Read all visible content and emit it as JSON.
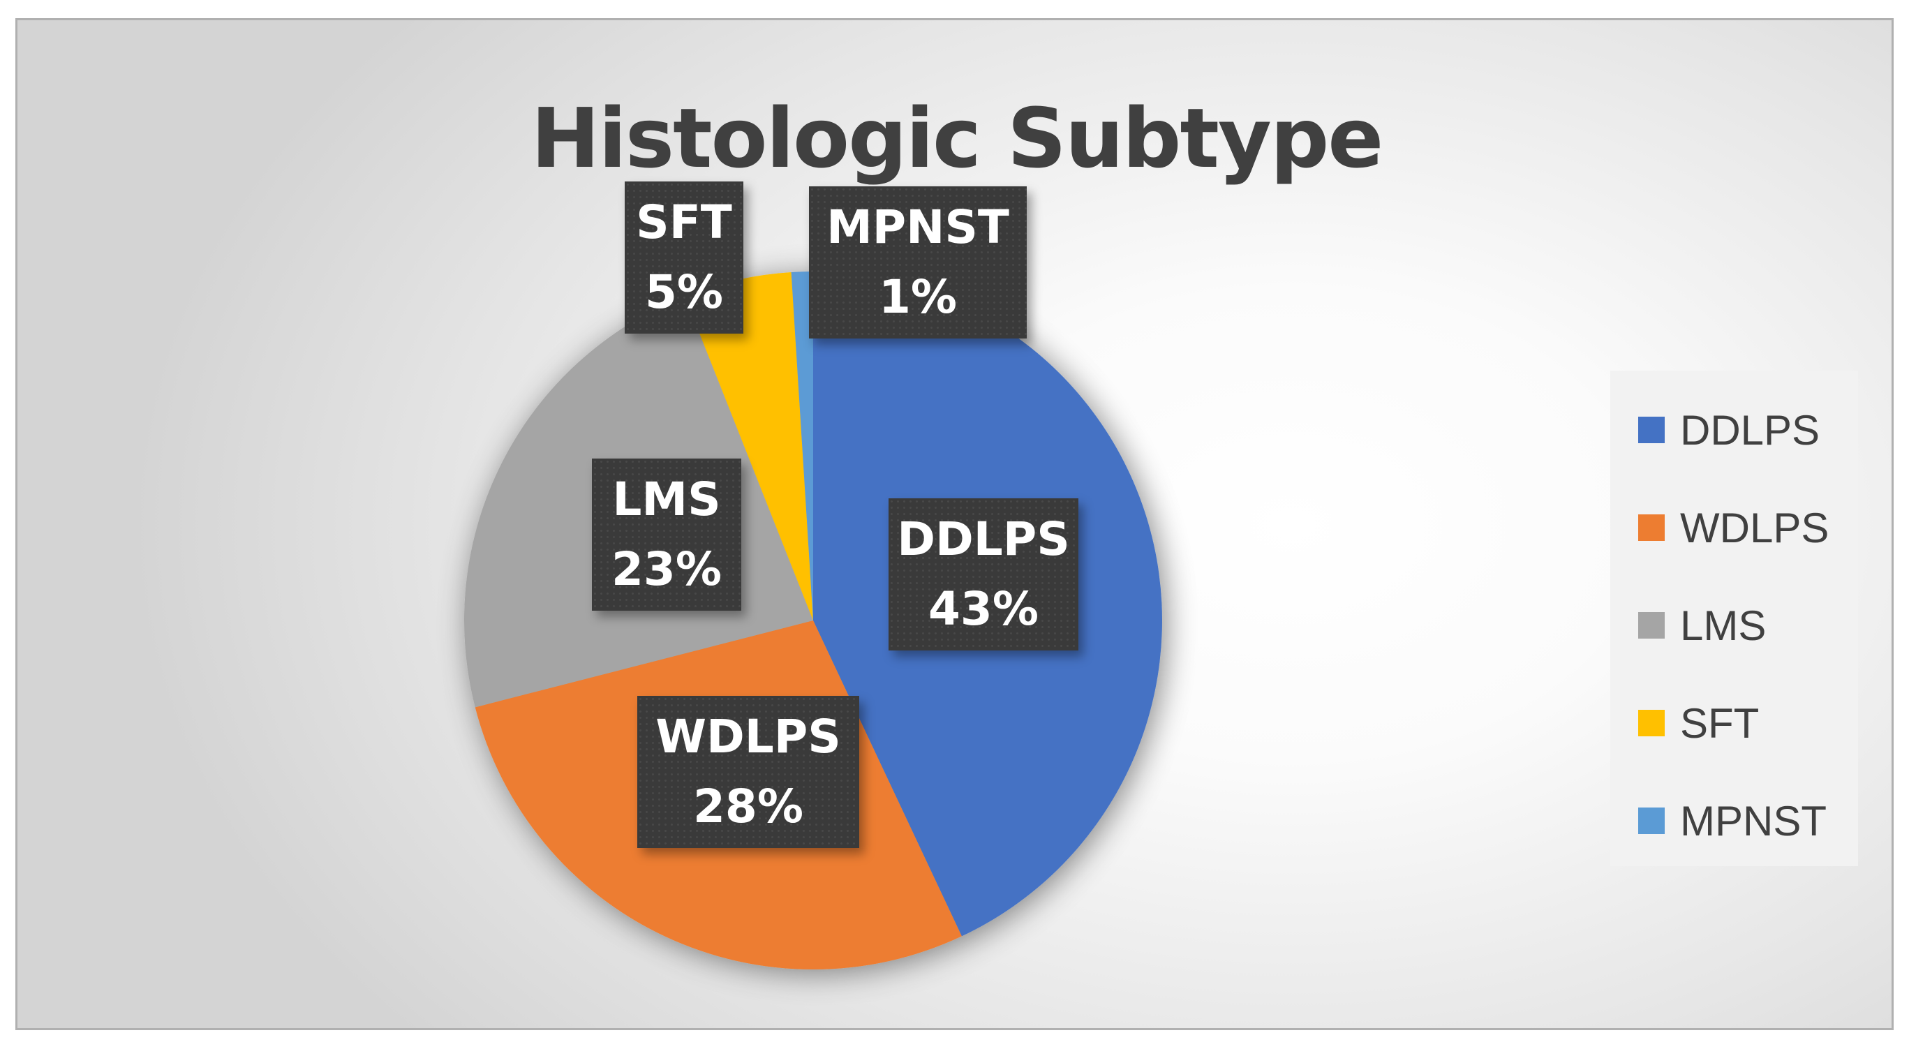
{
  "chart_data": {
    "type": "pie",
    "title": "Histologic Subtype",
    "categories": [
      "DDLPS",
      "WDLPS",
      "LMS",
      "SFT",
      "MPNST"
    ],
    "values": [
      43,
      28,
      23,
      5,
      1
    ],
    "value_labels": [
      "43%",
      "28%",
      "23%",
      "5%",
      "1%"
    ],
    "colors": [
      "#4472C4",
      "#ED7D31",
      "#A5A5A5",
      "#FFC000",
      "#5B9BD5"
    ],
    "legend": "right",
    "data_labels": "callout"
  }
}
